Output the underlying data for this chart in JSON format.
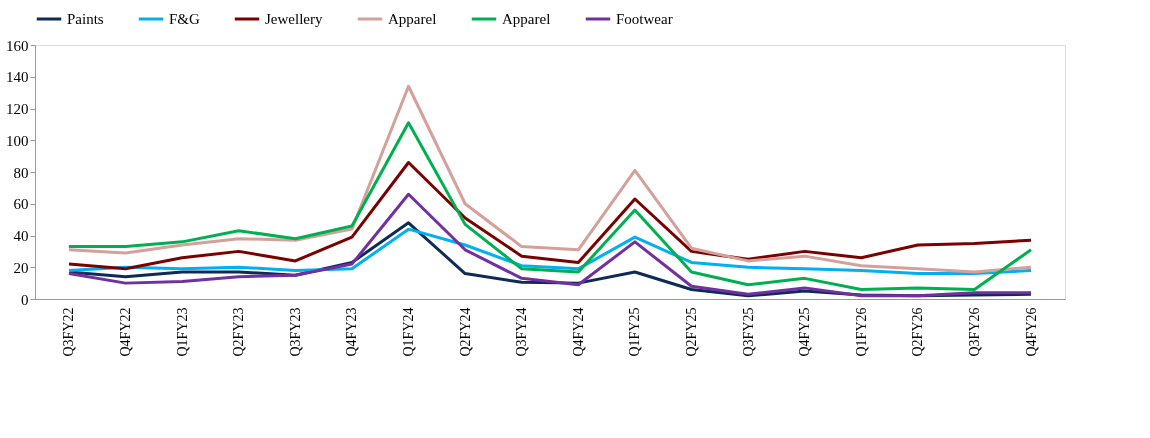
{
  "chart_data": {
    "type": "line",
    "categories": [
      "Q3FY22",
      "Q4FY22",
      "Q1FY23",
      "Q2FY23",
      "Q3FY23",
      "Q4FY23",
      "Q1FY24",
      "Q2FY24",
      "Q3FY24",
      "Q4FY24",
      "Q1FY25",
      "Q2FY25",
      "Q3FY25",
      "Q4FY25",
      "Q1FY26",
      "Q2FY26",
      "Q3FY26",
      "Q4FY26"
    ],
    "series": [
      {
        "name": "Paints",
        "color": "#0d2b55",
        "values": [
          17,
          14,
          17,
          17,
          15,
          23,
          48,
          16,
          10.5,
          10,
          17,
          6,
          2,
          5,
          2.5,
          2,
          2.5,
          3
        ]
      },
      {
        "name": "F&G",
        "color": "#00b0f0",
        "values": [
          18,
          20,
          19,
          20,
          18,
          19,
          44,
          34,
          21,
          19,
          39,
          23,
          20,
          19,
          18,
          16,
          16,
          18
        ]
      },
      {
        "name": "Jewellery",
        "color": "#7b0000",
        "values": [
          22,
          19,
          26,
          30,
          24,
          39,
          86,
          51,
          27,
          23,
          63,
          30,
          25,
          30,
          26,
          34,
          35,
          37
        ]
      },
      {
        "name": "Apparel",
        "color": "#d4a09a",
        "values": [
          31,
          29,
          34,
          38,
          37,
          44,
          134,
          60,
          33,
          31,
          81,
          32,
          24,
          27,
          21,
          19,
          17,
          20
        ]
      },
      {
        "name": "Apparel",
        "color": "#00b050",
        "values": [
          33,
          33,
          36,
          43,
          38,
          46,
          111,
          47,
          19,
          17,
          56,
          17,
          9,
          13,
          6,
          7,
          6,
          31
        ]
      },
      {
        "name": "Footwear",
        "color": "#7030a0",
        "values": [
          16,
          10,
          11,
          14,
          15,
          22,
          66,
          31,
          13,
          9,
          36,
          8,
          3,
          7,
          2,
          2,
          4,
          4
        ]
      }
    ],
    "ylim": [
      0,
      160
    ],
    "yticks": [
      0,
      20,
      40,
      60,
      80,
      100,
      120,
      140,
      160
    ],
    "grid": false,
    "legend": "top",
    "marker": "none",
    "line_style": "solid"
  }
}
